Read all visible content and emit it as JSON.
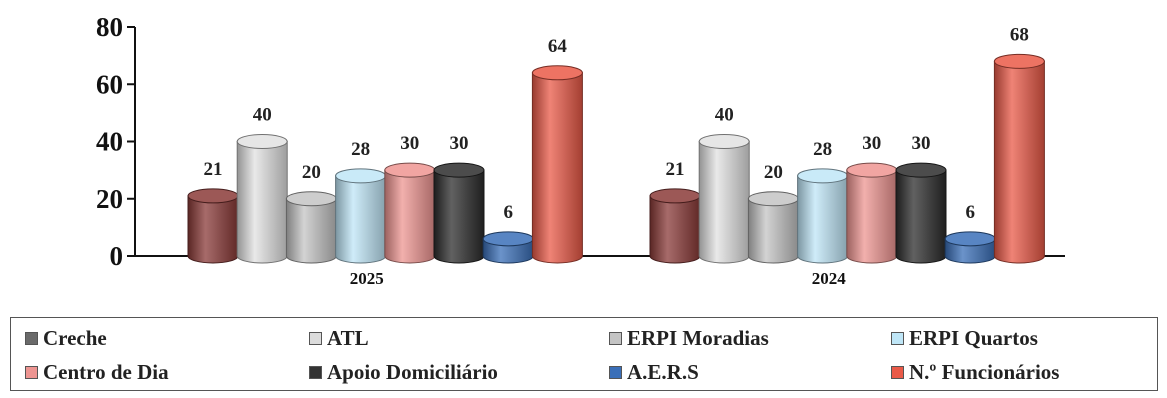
{
  "chart_data": {
    "type": "bar",
    "categories": [
      "2025",
      "2024"
    ],
    "ylim": [
      0,
      80
    ],
    "yticks": [
      "0",
      "20",
      "40",
      "60",
      "80"
    ],
    "series": [
      {
        "name": "Creche",
        "values": [
          21,
          21
        ],
        "color": "#8a3a38",
        "legend_color": "#6a6a6a"
      },
      {
        "name": "ATL",
        "values": [
          40,
          40
        ],
        "color": "#e2e2e2",
        "legend_color": "#dcdcdc"
      },
      {
        "name": "ERPI Moradias",
        "values": [
          20,
          20
        ],
        "color": "#c4c4c4",
        "legend_color": "#c4c4c4"
      },
      {
        "name": "ERPI Quartos",
        "values": [
          28,
          28
        ],
        "color": "#bfe6f7",
        "legend_color": "#bfe6f7"
      },
      {
        "name": "Centro de Dia",
        "values": [
          30,
          30
        ],
        "color": "#ee9592",
        "legend_color": "#ee9592"
      },
      {
        "name": "Apoio Domiciliário",
        "values": [
          30,
          30
        ],
        "color": "#2c2c2c",
        "legend_color": "#333333"
      },
      {
        "name": "A.E.R.S",
        "values": [
          6,
          6
        ],
        "color": "#3a6fb8",
        "legend_color": "#3a6fb8"
      },
      {
        "name": "N.º Funcionários",
        "values": [
          64,
          68
        ],
        "color": "#ea5a48",
        "legend_color": "#ea5a48"
      }
    ],
    "data_labels": [
      [
        "21",
        "40",
        "20",
        "28",
        "30",
        "30",
        "6",
        "64"
      ],
      [
        "21",
        "40",
        "20",
        "28",
        "30",
        "30",
        "6",
        "68"
      ]
    ],
    "grid": false,
    "legend_position": "bottom"
  }
}
